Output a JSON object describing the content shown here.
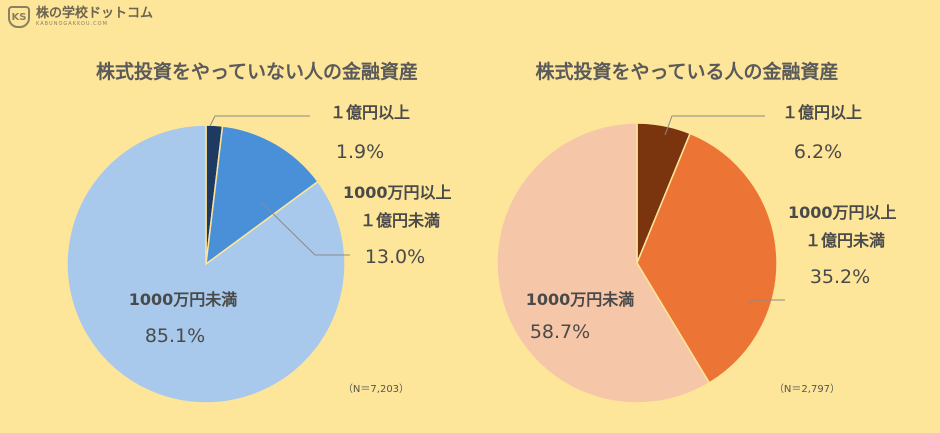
{
  "logo": {
    "text": "株の学校ドットコム",
    "sub": "KABUNOGAKKOU.COM"
  },
  "chart_data": [
    {
      "type": "pie",
      "title": "株式投資をやっていない人の金融資産",
      "note": "（N＝7,203）",
      "slices": [
        {
          "label": "１億円以上",
          "value": 1.9,
          "value_label": "1.9%",
          "color": "#1D3A63"
        },
        {
          "label": "1000万円以上 １億円未満",
          "value": 13.0,
          "value_label": "13.0%",
          "color": "#4A90D9"
        },
        {
          "label": "1000万円未満",
          "value": 85.1,
          "value_label": "85.1%",
          "color": "#A8C9EC"
        }
      ]
    },
    {
      "type": "pie",
      "title": "株式投資をやっている人の金融資産",
      "note": "（N＝2,797）",
      "slices": [
        {
          "label": "１億円以上",
          "value": 6.2,
          "value_label": "6.2%",
          "color": "#7A340E"
        },
        {
          "label": "1000万円以上 １億円未満",
          "value": 35.2,
          "value_label": "35.2%",
          "color": "#EC7535"
        },
        {
          "label": "1000万円未満",
          "value": 58.7,
          "value_label": "58.7%",
          "color": "#F6C6A8"
        }
      ]
    }
  ]
}
